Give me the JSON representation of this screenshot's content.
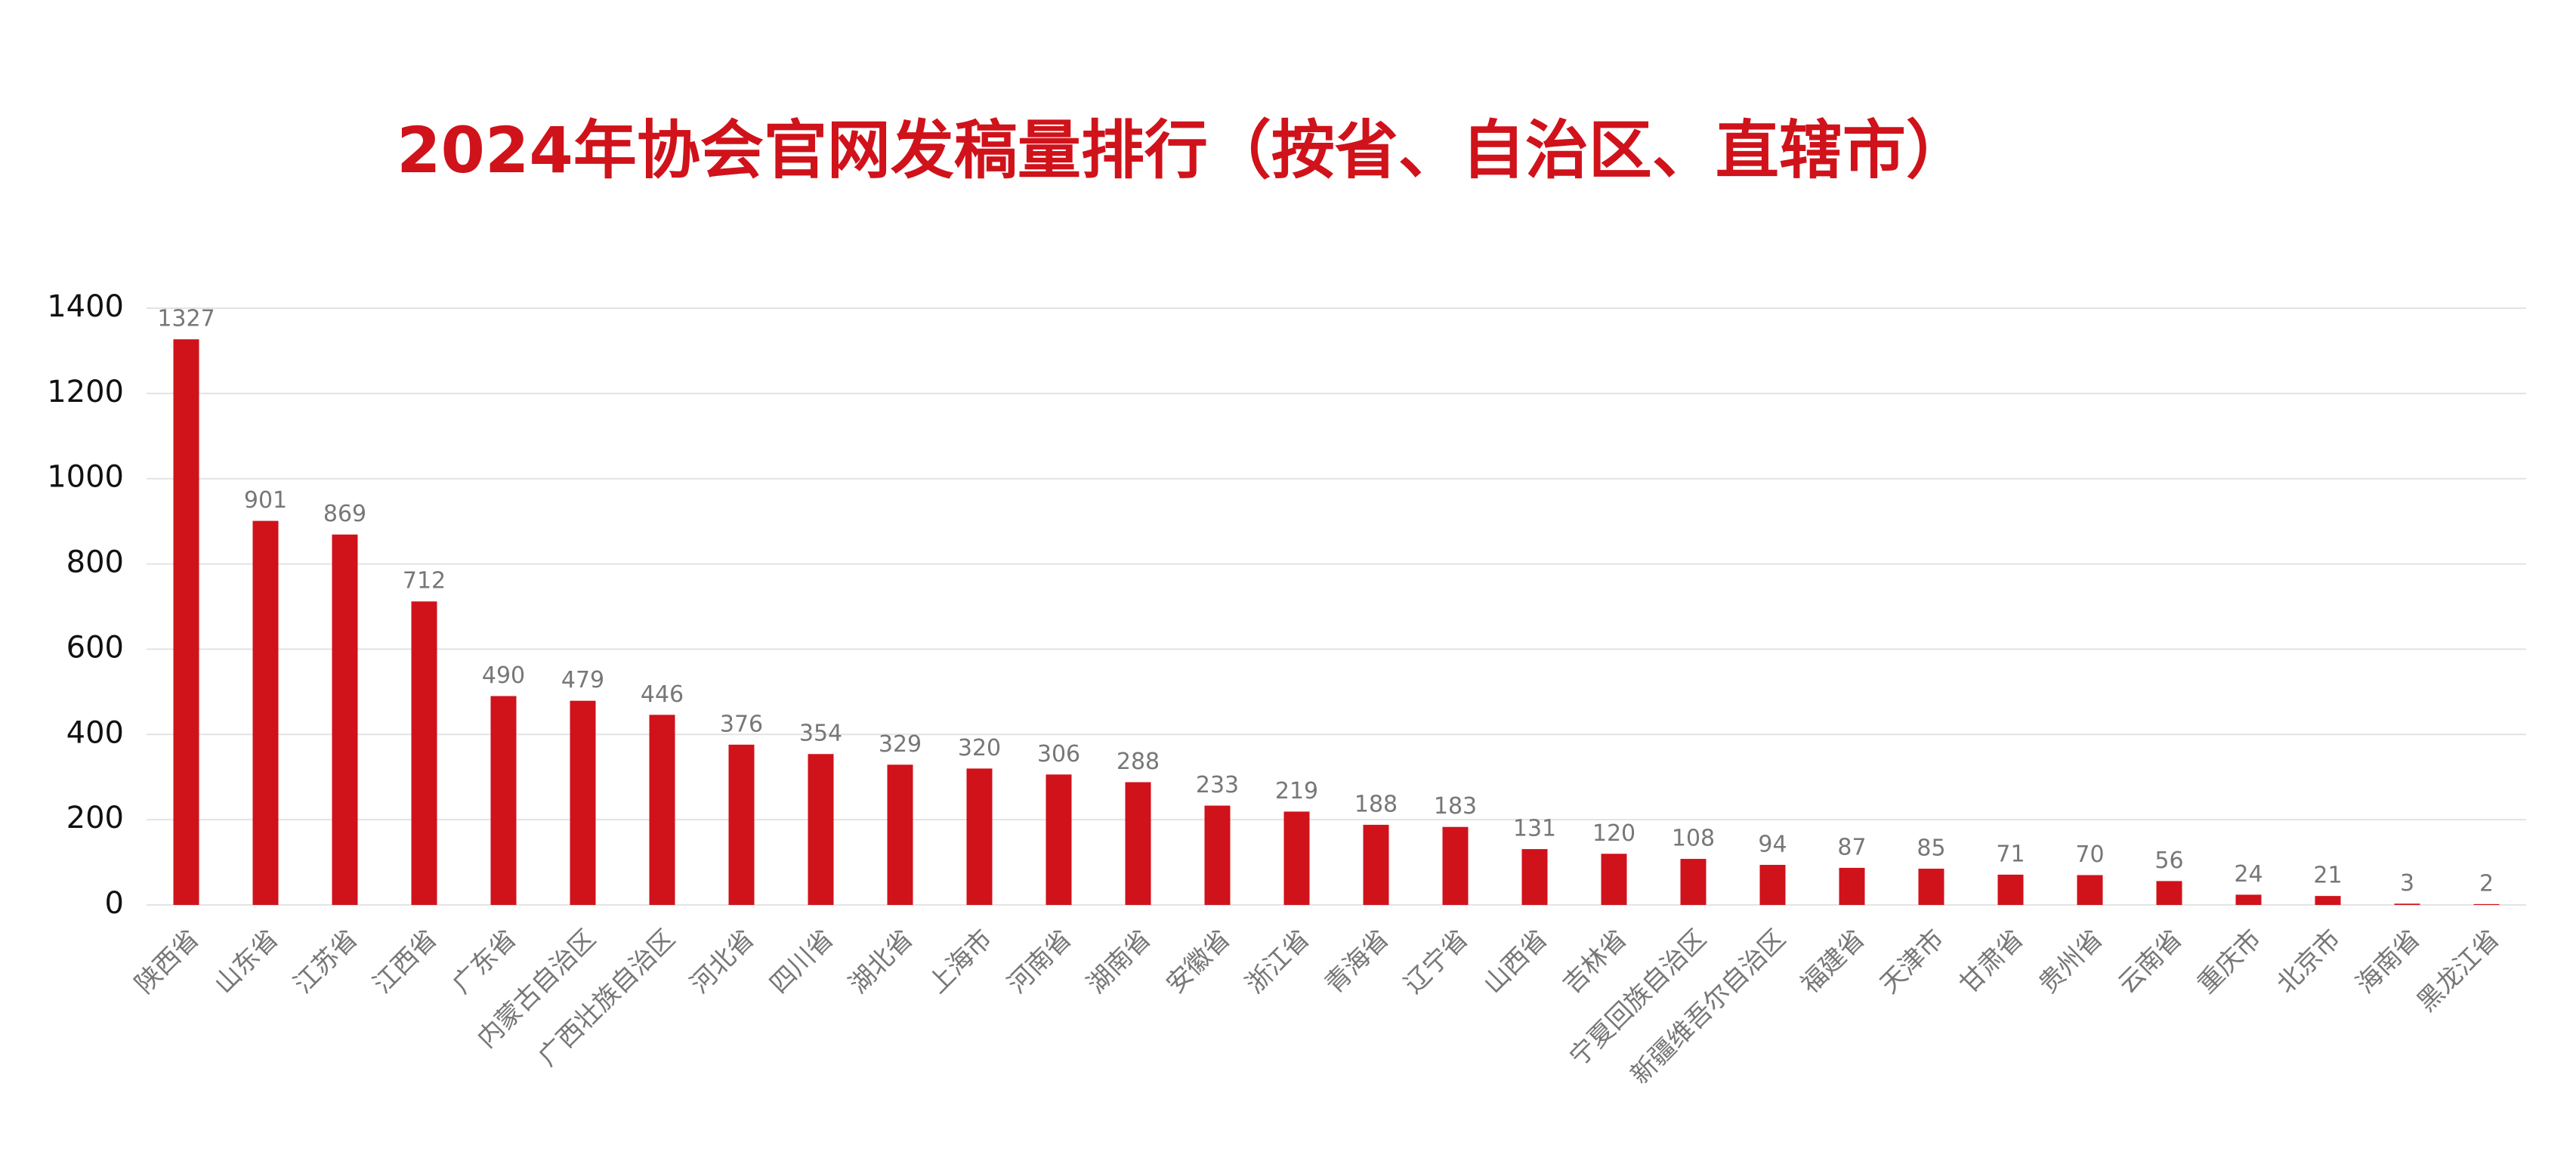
{
  "chart_data": {
    "type": "bar",
    "title": "2024年协会官网发稿量排行（按省、自治区、直辖市）",
    "categories": [
      "陕西省",
      "山东省",
      "江苏省",
      "江西省",
      "广东省",
      "内蒙古自治区",
      "广西壮族自治区",
      "河北省",
      "四川省",
      "湖北省",
      "上海市",
      "河南省",
      "湖南省",
      "安徽省",
      "浙江省",
      "青海省",
      "辽宁省",
      "山西省",
      "吉林省",
      "宁夏回族自治区",
      "新疆维吾尔自治区",
      "福建省",
      "天津市",
      "甘肃省",
      "贵州省",
      "云南省",
      "重庆市",
      "北京市",
      "海南省",
      "黑龙江省"
    ],
    "values": [
      1327,
      901,
      869,
      712,
      490,
      479,
      446,
      376,
      354,
      329,
      320,
      306,
      288,
      233,
      219,
      188,
      183,
      131,
      120,
      108,
      94,
      87,
      85,
      71,
      70,
      56,
      24,
      21,
      3,
      2
    ],
    "color": "#d0121b",
    "ylim": [
      0,
      1400
    ],
    "yticks": [
      0,
      200,
      400,
      600,
      800,
      1000,
      1200,
      1400
    ],
    "grid": true
  }
}
